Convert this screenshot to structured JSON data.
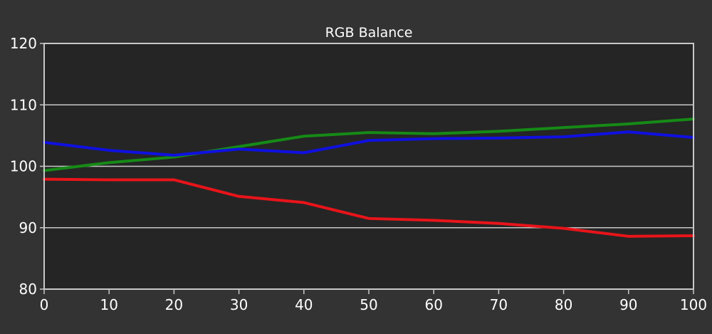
{
  "chart_data": {
    "type": "line",
    "title": "RGB Balance",
    "xlabel": "",
    "ylabel": "",
    "x": [
      0,
      10,
      20,
      30,
      40,
      50,
      60,
      70,
      80,
      90,
      100
    ],
    "xlim": [
      0,
      100
    ],
    "ylim": [
      80,
      120
    ],
    "xticks": [
      0,
      10,
      20,
      30,
      40,
      50,
      60,
      70,
      80,
      90,
      100
    ],
    "yticks": [
      80,
      90,
      100,
      110,
      120
    ],
    "grid": true,
    "legend": "none",
    "series": [
      {
        "color": "#e8141a",
        "values": [
          97.9,
          97.8,
          97.8,
          95.1,
          94.1,
          91.5,
          91.2,
          90.7,
          89.9,
          88.6,
          88.7
        ]
      },
      {
        "color": "#168a16",
        "values": [
          99.3,
          100.6,
          101.5,
          103.2,
          104.9,
          105.5,
          105.3,
          105.7,
          106.3,
          106.9,
          107.7
        ]
      },
      {
        "color": "#1010e0",
        "values": [
          103.9,
          102.6,
          101.8,
          102.8,
          102.2,
          104.2,
          104.5,
          104.6,
          104.8,
          105.6,
          104.7
        ]
      }
    ],
    "colors": {
      "background": "#333333",
      "plot_background": "#252525",
      "plot_border": "#c8c8c8",
      "grid": "#c8c8c8",
      "text": "#ffffff"
    }
  }
}
